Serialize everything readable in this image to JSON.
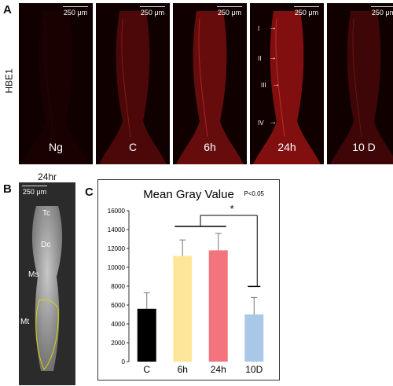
{
  "panelA": {
    "letter": "A",
    "ylabel": "HBE1",
    "scale": "250 μm",
    "images": [
      {
        "label": "Ng",
        "intensity": 0.08
      },
      {
        "label": "C",
        "intensity": 0.45
      },
      {
        "label": "6h",
        "intensity": 0.65
      },
      {
        "label": "24h",
        "intensity": 0.85
      },
      {
        "label": "10 D",
        "intensity": 0.35
      }
    ],
    "markers": [
      "I",
      "II",
      "III",
      "IV"
    ]
  },
  "panelB": {
    "letter": "B",
    "title": "24hr",
    "scale": "250 μm",
    "labels": [
      "Tc",
      "Dc",
      "Ms",
      "Mt"
    ]
  },
  "panelC": {
    "letter": "C",
    "sig_note": "P<0.05",
    "star": "*"
  },
  "chart_data": {
    "type": "bar",
    "title": "Mean Gray Value",
    "categories": [
      "C",
      "6h",
      "24h",
      "10D"
    ],
    "values": [
      5600,
      11200,
      11800,
      5000
    ],
    "errors": [
      1700,
      1700,
      1800,
      1800
    ],
    "colors": [
      "#000000",
      "#fde69a",
      "#f4747d",
      "#a9c8e8"
    ],
    "ylim": [
      0,
      16000
    ],
    "yticks": [
      0,
      2000,
      4000,
      6000,
      8000,
      10000,
      12000,
      14000,
      16000
    ],
    "xlabel": "",
    "ylabel": ""
  }
}
